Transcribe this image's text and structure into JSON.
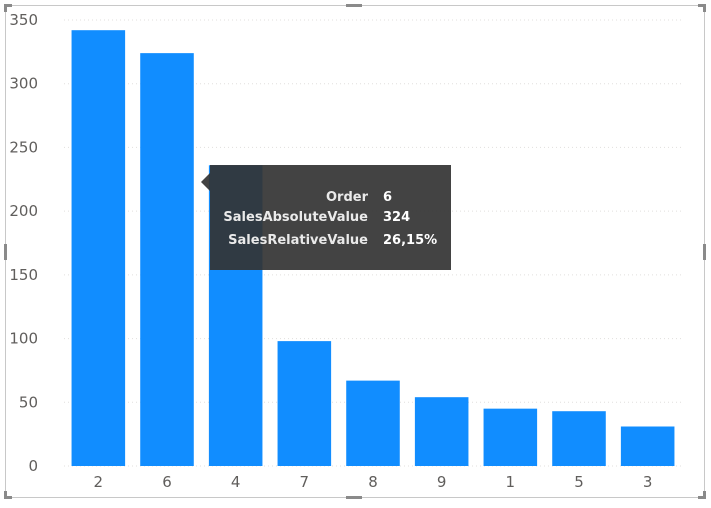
{
  "chart_data": {
    "type": "bar",
    "categories": [
      "2",
      "6",
      "4",
      "7",
      "8",
      "9",
      "1",
      "5",
      "3"
    ],
    "values": [
      342,
      324,
      236,
      98,
      67,
      54,
      45,
      43,
      31
    ],
    "yticks": [
      "0",
      "50",
      "100",
      "150",
      "200",
      "250",
      "300",
      "350"
    ],
    "ylim": [
      0,
      350
    ],
    "bar_color": "#118DFF",
    "grid": "dotted horizontal",
    "title": "",
    "xlabel": "",
    "ylabel": ""
  },
  "tooltip": {
    "rows": [
      {
        "key": "Order",
        "value": "6"
      },
      {
        "key": "SalesAbsoluteValue",
        "value": "324"
      },
      {
        "key": "SalesRelativeValue",
        "value": "26,15%"
      }
    ]
  }
}
